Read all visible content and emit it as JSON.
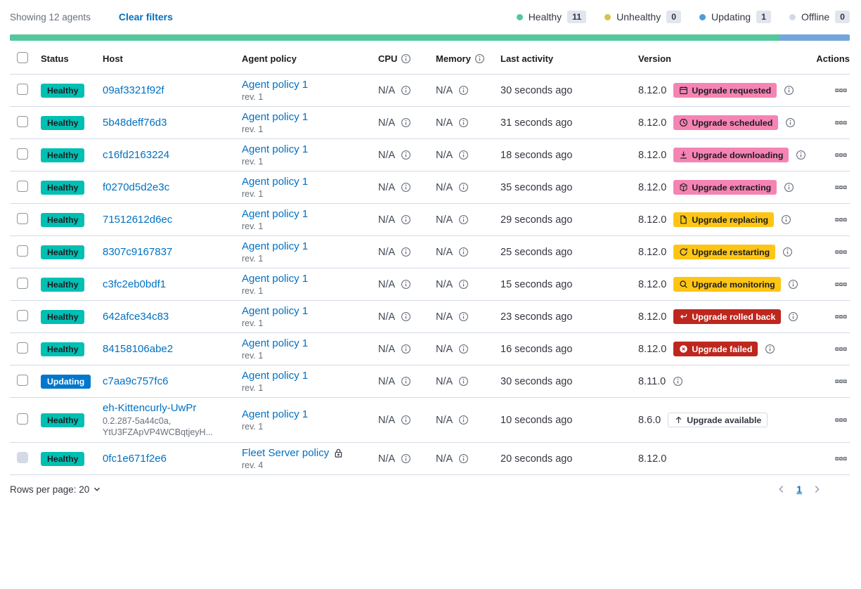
{
  "colors": {
    "healthy_badge": "#00BFB3",
    "updating_badge": "#0077CC",
    "accent_badge": "#F584B4",
    "warning_badge": "#FEC514",
    "danger_badge": "#BD271E",
    "link": "#0071C2",
    "bar_healthy": "#54C79C",
    "bar_updating": "#73A6DB"
  },
  "toolbar": {
    "showing_text": "Showing 12 agents",
    "clear_filters_label": "Clear filters",
    "legend": [
      {
        "label": "Healthy",
        "count": "11",
        "color": "#54C79C"
      },
      {
        "label": "Unhealthy",
        "count": "0",
        "color": "#D9C24E"
      },
      {
        "label": "Updating",
        "count": "1",
        "color": "#509BD5"
      },
      {
        "label": "Offline",
        "count": "0",
        "color": "#D3DAE6"
      }
    ]
  },
  "health_bar": {
    "segments": [
      {
        "status": "healthy",
        "color": "#54C79C",
        "fraction": 0.9167
      },
      {
        "status": "updating",
        "color": "#73A6DB",
        "fraction": 0.0833
      }
    ]
  },
  "table": {
    "headers": {
      "status": "Status",
      "host": "Host",
      "policy": "Agent policy",
      "cpu": "CPU",
      "memory": "Memory",
      "last_activity": "Last activity",
      "version": "Version",
      "actions": "Actions"
    },
    "rows": [
      {
        "status": "Healthy",
        "status_style": "healthy",
        "host": "09af3321f92f",
        "host_sub": [],
        "policy": "Agent policy 1",
        "policy_rev": "rev. 1",
        "policy_lock": false,
        "cpu": "N/A",
        "memory": "N/A",
        "last_activity": "30 seconds ago",
        "version": "8.12.0",
        "upgrade_badge": {
          "label": "Upgrade requested",
          "icon": "calendar-icon",
          "style": "accent"
        },
        "version_info": true,
        "checkbox_disabled": false
      },
      {
        "status": "Healthy",
        "status_style": "healthy",
        "host": "5b48deff76d3",
        "host_sub": [],
        "policy": "Agent policy 1",
        "policy_rev": "rev. 1",
        "policy_lock": false,
        "cpu": "N/A",
        "memory": "N/A",
        "last_activity": "31 seconds ago",
        "version": "8.12.0",
        "upgrade_badge": {
          "label": "Upgrade scheduled",
          "icon": "clock-icon",
          "style": "accent"
        },
        "version_info": true,
        "checkbox_disabled": false
      },
      {
        "status": "Healthy",
        "status_style": "healthy",
        "host": "c16fd2163224",
        "host_sub": [],
        "policy": "Agent policy 1",
        "policy_rev": "rev. 1",
        "policy_lock": false,
        "cpu": "N/A",
        "memory": "N/A",
        "last_activity": "18 seconds ago",
        "version": "8.12.0",
        "upgrade_badge": {
          "label": "Upgrade downloading",
          "icon": "download-icon",
          "style": "accent"
        },
        "version_info": true,
        "checkbox_disabled": false
      },
      {
        "status": "Healthy",
        "status_style": "healthy",
        "host": "f0270d5d2e3c",
        "host_sub": [],
        "policy": "Agent policy 1",
        "policy_rev": "rev. 1",
        "policy_lock": false,
        "cpu": "N/A",
        "memory": "N/A",
        "last_activity": "35 seconds ago",
        "version": "8.12.0",
        "upgrade_badge": {
          "label": "Upgrade extracting",
          "icon": "package-icon",
          "style": "accent"
        },
        "version_info": true,
        "checkbox_disabled": false
      },
      {
        "status": "Healthy",
        "status_style": "healthy",
        "host": "71512612d6ec",
        "host_sub": [],
        "policy": "Agent policy 1",
        "policy_rev": "rev. 1",
        "policy_lock": false,
        "cpu": "N/A",
        "memory": "N/A",
        "last_activity": "29 seconds ago",
        "version": "8.12.0",
        "upgrade_badge": {
          "label": "Upgrade replacing",
          "icon": "document-icon",
          "style": "warning"
        },
        "version_info": true,
        "checkbox_disabled": false
      },
      {
        "status": "Healthy",
        "status_style": "healthy",
        "host": "8307c9167837",
        "host_sub": [],
        "policy": "Agent policy 1",
        "policy_rev": "rev. 1",
        "policy_lock": false,
        "cpu": "N/A",
        "memory": "N/A",
        "last_activity": "25 seconds ago",
        "version": "8.12.0",
        "upgrade_badge": {
          "label": "Upgrade restarting",
          "icon": "refresh-icon",
          "style": "warning"
        },
        "version_info": true,
        "checkbox_disabled": false
      },
      {
        "status": "Healthy",
        "status_style": "healthy",
        "host": "c3fc2eb0bdf1",
        "host_sub": [],
        "policy": "Agent policy 1",
        "policy_rev": "rev. 1",
        "policy_lock": false,
        "cpu": "N/A",
        "memory": "N/A",
        "last_activity": "15 seconds ago",
        "version": "8.12.0",
        "upgrade_badge": {
          "label": "Upgrade monitoring",
          "icon": "inspect-icon",
          "style": "warning"
        },
        "version_info": true,
        "checkbox_disabled": false
      },
      {
        "status": "Healthy",
        "status_style": "healthy",
        "host": "642afce34c83",
        "host_sub": [],
        "policy": "Agent policy 1",
        "policy_rev": "rev. 1",
        "policy_lock": false,
        "cpu": "N/A",
        "memory": "N/A",
        "last_activity": "23 seconds ago",
        "version": "8.12.0",
        "upgrade_badge": {
          "label": "Upgrade rolled back",
          "icon": "return-icon",
          "style": "danger"
        },
        "version_info": true,
        "checkbox_disabled": false
      },
      {
        "status": "Healthy",
        "status_style": "healthy",
        "host": "84158106abe2",
        "host_sub": [],
        "policy": "Agent policy 1",
        "policy_rev": "rev. 1",
        "policy_lock": false,
        "cpu": "N/A",
        "memory": "N/A",
        "last_activity": "16 seconds ago",
        "version": "8.12.0",
        "upgrade_badge": {
          "label": "Upgrade failed",
          "icon": "error-icon",
          "style": "danger"
        },
        "version_info": true,
        "checkbox_disabled": false
      },
      {
        "status": "Updating",
        "status_style": "updating",
        "host": "c7aa9c757fc6",
        "host_sub": [],
        "policy": "Agent policy 1",
        "policy_rev": "rev. 1",
        "policy_lock": false,
        "cpu": "N/A",
        "memory": "N/A",
        "last_activity": "30 seconds ago",
        "version": "8.11.0",
        "upgrade_badge": null,
        "version_info": true,
        "checkbox_disabled": false
      },
      {
        "status": "Healthy",
        "status_style": "healthy",
        "host": "eh-Kittencurly-UwPr",
        "host_sub": [
          "0.2.287-5a44c0a,",
          "YtU3FZApVP4WCBqtjeyH..."
        ],
        "policy": "Agent policy 1",
        "policy_rev": "rev. 1",
        "policy_lock": false,
        "cpu": "N/A",
        "memory": "N/A",
        "last_activity": "10 seconds ago",
        "version": "8.6.0",
        "upgrade_badge": {
          "label": "Upgrade available",
          "icon": "arrow-up-icon",
          "style": "hollow"
        },
        "version_info": false,
        "checkbox_disabled": false
      },
      {
        "status": "Healthy",
        "status_style": "healthy",
        "host": "0fc1e671f2e6",
        "host_sub": [],
        "policy": "Fleet Server policy",
        "policy_rev": "rev. 4",
        "policy_lock": true,
        "cpu": "N/A",
        "memory": "N/A",
        "last_activity": "20 seconds ago",
        "version": "8.12.0",
        "upgrade_badge": null,
        "version_info": false,
        "checkbox_disabled": true
      }
    ]
  },
  "footer": {
    "rows_per_page_label": "Rows per page: 20",
    "current_page": "1"
  }
}
